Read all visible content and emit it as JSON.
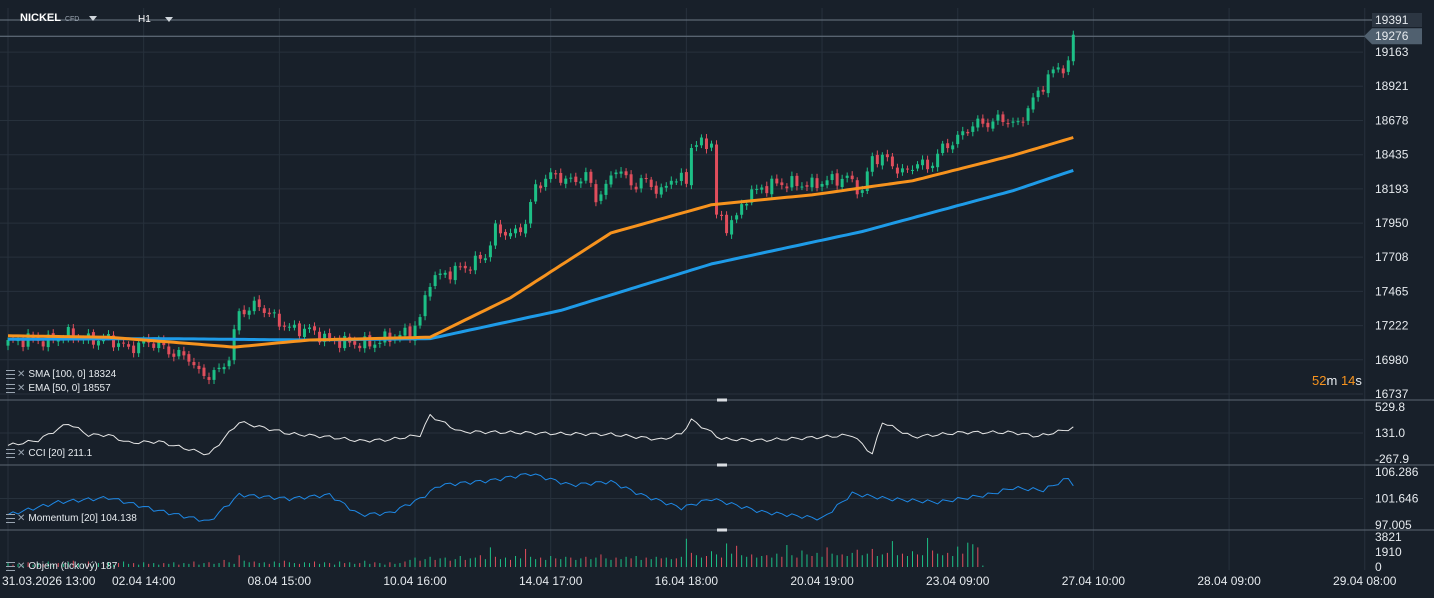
{
  "header": {
    "symbol": "NICKEL",
    "symbol_suffix": "CFD",
    "timeframe": "H1"
  },
  "timer": {
    "minutes": "52",
    "m": "m",
    "seconds": "14",
    "s": "s"
  },
  "colors": {
    "background": "#18202a",
    "grid": "#27313c",
    "up": "#1dbf86",
    "down": "#e04e5c",
    "sma": "#1e9be8",
    "ema": "#f7931e",
    "cci": "#e6e6e6",
    "momentum": "#1e88e5",
    "price_tag": "#50606f"
  },
  "legends": {
    "sma": "SMA [100, 0] 18324",
    "ema": "EMA [50, 0] 18557",
    "cci": "CCI [20] 211.1",
    "momentum": "Momentum [20] 104.138",
    "volume": "Objem (tickový) 187"
  },
  "chart_data": [
    {
      "type": "candlestick",
      "name": "price",
      "title": "NICKEL",
      "y_ticks": [
        "19391",
        "19276",
        "19163",
        "18921",
        "18678",
        "18435",
        "18193",
        "17950",
        "17708",
        "17465",
        "17222",
        "16980",
        "16737"
      ],
      "ylim": [
        16737,
        19391
      ],
      "current_price": "19276",
      "high_price": "19391",
      "x_ticks": [
        "31.03.2026 13:00",
        "02.04 14:00",
        "08.04 15:00",
        "10.04 16:00",
        "14.04 17:00",
        "16.04 18:00",
        "20.04 19:00",
        "23.04 09:00",
        "27.04 10:00",
        "28.04 09:00",
        "29.04 08:00"
      ],
      "close_anchors": [
        [
          0,
          17100
        ],
        [
          4,
          17130
        ],
        [
          8,
          17110
        ],
        [
          12,
          17160
        ],
        [
          16,
          17120
        ],
        [
          20,
          17130
        ],
        [
          24,
          17060
        ],
        [
          28,
          17110
        ],
        [
          30,
          17090
        ],
        [
          33,
          17020
        ],
        [
          36,
          17000
        ],
        [
          38,
          16880
        ],
        [
          40,
          16870
        ],
        [
          42,
          16900
        ],
        [
          44,
          17000
        ],
        [
          46,
          17320
        ],
        [
          48,
          17340
        ],
        [
          50,
          17370
        ],
        [
          52,
          17300
        ],
        [
          56,
          17200
        ],
        [
          60,
          17190
        ],
        [
          64,
          17120
        ],
        [
          68,
          17100
        ],
        [
          72,
          17090
        ],
        [
          76,
          17140
        ],
        [
          80,
          17170
        ],
        [
          82,
          17270
        ],
        [
          84,
          17550
        ],
        [
          88,
          17600
        ],
        [
          92,
          17650
        ],
        [
          95,
          17720
        ],
        [
          97,
          17900
        ],
        [
          101,
          17870
        ],
        [
          103,
          17960
        ],
        [
          105,
          18200
        ],
        [
          107,
          18270
        ],
        [
          109,
          18290
        ],
        [
          112,
          18240
        ],
        [
          115,
          18290
        ],
        [
          117,
          18130
        ],
        [
          119,
          18200
        ],
        [
          121,
          18350
        ],
        [
          124,
          18220
        ],
        [
          127,
          18250
        ],
        [
          130,
          18160
        ],
        [
          132,
          18270
        ],
        [
          135,
          18250
        ],
        [
          136,
          18500
        ],
        [
          140,
          18520
        ],
        [
          141,
          18000
        ],
        [
          143,
          17930
        ],
        [
          145,
          17990
        ],
        [
          147,
          18140
        ],
        [
          150,
          18200
        ],
        [
          153,
          18230
        ],
        [
          156,
          18230
        ],
        [
          160,
          18220
        ],
        [
          163,
          18250
        ],
        [
          167,
          18270
        ],
        [
          170,
          18170
        ],
        [
          172,
          18420
        ],
        [
          175,
          18400
        ],
        [
          178,
          18300
        ],
        [
          181,
          18380
        ],
        [
          183,
          18340
        ],
        [
          186,
          18480
        ],
        [
          189,
          18550
        ],
        [
          192,
          18650
        ],
        [
          195,
          18660
        ],
        [
          198,
          18690
        ],
        [
          201,
          18640
        ],
        [
          203,
          18770
        ],
        [
          205,
          18870
        ],
        [
          207,
          18990
        ],
        [
          209,
          19050
        ],
        [
          211,
          19070
        ],
        [
          212,
          19276
        ]
      ],
      "series": [
        {
          "name": "SMA [100, 0]",
          "points": [
            [
              0,
              17125
            ],
            [
              30,
              17130
            ],
            [
              60,
              17120
            ],
            [
              84,
              17130
            ],
            [
              110,
              17330
            ],
            [
              140,
              17660
            ],
            [
              170,
              17890
            ],
            [
              200,
              18180
            ],
            [
              212,
              18324
            ]
          ]
        },
        {
          "name": "EMA [50, 0]",
          "points": [
            [
              0,
              17150
            ],
            [
              20,
              17140
            ],
            [
              45,
              17070
            ],
            [
              60,
              17120
            ],
            [
              84,
              17140
            ],
            [
              100,
              17420
            ],
            [
              120,
              17880
            ],
            [
              140,
              18080
            ],
            [
              160,
              18150
            ],
            [
              180,
              18250
            ],
            [
              200,
              18430
            ],
            [
              212,
              18557
            ]
          ]
        }
      ]
    },
    {
      "type": "line",
      "name": "CCI [20]",
      "y_ticks": [
        "529.8",
        "131.0",
        "-267.9"
      ],
      "ylim": [
        -267.9,
        529.8
      ],
      "last_value": 211.1,
      "points": [
        [
          0,
          -60
        ],
        [
          6,
          20
        ],
        [
          12,
          280
        ],
        [
          16,
          100
        ],
        [
          20,
          100
        ],
        [
          24,
          -20
        ],
        [
          30,
          0
        ],
        [
          40,
          -200
        ],
        [
          46,
          300
        ],
        [
          56,
          120
        ],
        [
          64,
          70
        ],
        [
          70,
          10
        ],
        [
          76,
          30
        ],
        [
          82,
          100
        ],
        [
          84,
          400
        ],
        [
          90,
          150
        ],
        [
          100,
          140
        ],
        [
          110,
          120
        ],
        [
          120,
          110
        ],
        [
          130,
          30
        ],
        [
          134,
          120
        ],
        [
          136,
          330
        ],
        [
          142,
          40
        ],
        [
          150,
          20
        ],
        [
          160,
          60
        ],
        [
          168,
          100
        ],
        [
          172,
          -190
        ],
        [
          174,
          300
        ],
        [
          180,
          70
        ],
        [
          190,
          140
        ],
        [
          200,
          140
        ],
        [
          205,
          80
        ],
        [
          210,
          170
        ],
        [
          212,
          211.1
        ]
      ]
    },
    {
      "type": "line",
      "name": "Momentum [20]",
      "y_ticks": [
        "106.286",
        "101.646",
        "97.005"
      ],
      "ylim": [
        97.005,
        106.286
      ],
      "last_value": 104.138,
      "points": [
        [
          0,
          98.8
        ],
        [
          10,
          101.0
        ],
        [
          20,
          101.8
        ],
        [
          30,
          99.5
        ],
        [
          40,
          97.6
        ],
        [
          46,
          102.3
        ],
        [
          56,
          101.6
        ],
        [
          64,
          102.3
        ],
        [
          70,
          98.8
        ],
        [
          76,
          99.1
        ],
        [
          82,
          101.6
        ],
        [
          86,
          104.0
        ],
        [
          96,
          104.8
        ],
        [
          104,
          106.0
        ],
        [
          112,
          104.0
        ],
        [
          120,
          104.6
        ],
        [
          126,
          102.3
        ],
        [
          134,
          100.0
        ],
        [
          140,
          101.6
        ],
        [
          150,
          99.3
        ],
        [
          162,
          98.1
        ],
        [
          168,
          102.5
        ],
        [
          175,
          101.6
        ],
        [
          185,
          101.0
        ],
        [
          195,
          102.3
        ],
        [
          200,
          103.5
        ],
        [
          206,
          103.1
        ],
        [
          211,
          105.2
        ],
        [
          212,
          104.138
        ]
      ]
    },
    {
      "type": "bar",
      "name": "Objem (tickový)",
      "y_ticks": [
        "3821",
        "1910",
        "0"
      ],
      "ylim": [
        0,
        3821
      ],
      "last_value": 187,
      "values": [
        500,
        300,
        400,
        200,
        600,
        300,
        500,
        400,
        700,
        300,
        500,
        400,
        600,
        800,
        500,
        400,
        700,
        300,
        500,
        400,
        600,
        300,
        500,
        700,
        400,
        500,
        300,
        600,
        400,
        500,
        300,
        500,
        400,
        600,
        300,
        500,
        400,
        700,
        300,
        500,
        600,
        400,
        500,
        900,
        600,
        400,
        1500,
        800,
        600,
        700,
        500,
        600,
        400,
        700,
        500,
        800,
        600,
        500,
        400,
        600,
        500,
        700,
        400,
        600,
        500,
        300,
        700,
        500,
        600,
        400,
        500,
        800,
        400,
        600,
        500,
        300,
        600,
        400,
        500,
        700,
        900,
        1200,
        800,
        1000,
        1300,
        900,
        1100,
        1200,
        800,
        1000,
        1400,
        900,
        1100,
        1200,
        1500,
        1000,
        2500,
        1300,
        1000,
        1200,
        900,
        1400,
        1100,
        2300,
        1300,
        1000,
        1200,
        900,
        1400,
        1100,
        1000,
        1300,
        1200,
        900,
        1100,
        1300,
        1000,
        1200,
        1600,
        1100,
        900,
        1200,
        1000,
        1300,
        1100,
        1400,
        900,
        1200,
        1000,
        1300,
        1100,
        1200,
        1000,
        1100,
        1300,
        3600,
        1800,
        1500,
        1200,
        1400,
        2000,
        1600,
        1200,
        3000,
        1700,
        2700,
        1500,
        1300,
        1600,
        1200,
        1400,
        1500,
        1200,
        1700,
        1300,
        2800,
        1500,
        1200,
        2100,
        1600,
        1400,
        1800,
        1300,
        2500,
        1700,
        1500,
        1600,
        1400,
        1800,
        2200,
        1500,
        1700,
        2300,
        1400,
        1600,
        1800,
        3300,
        1500,
        1700,
        1400,
        2000,
        1600,
        1500,
        3700,
        2100,
        1700,
        1500,
        1800,
        1400,
        2600,
        1700,
        3100,
        2900,
        2500,
        187
      ]
    }
  ]
}
